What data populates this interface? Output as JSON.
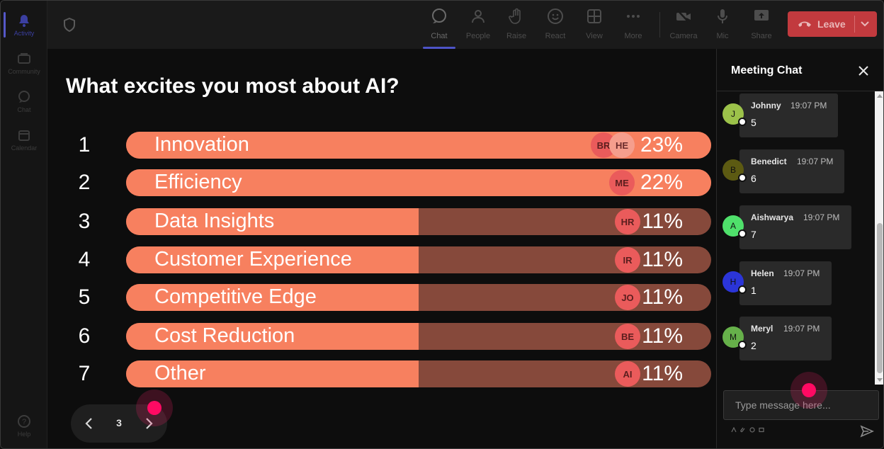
{
  "rail": {
    "items": [
      {
        "label": "Activity",
        "icon": "bell-icon"
      },
      {
        "label": "Community",
        "icon": "community-icon"
      },
      {
        "label": "Chat",
        "icon": "chat-icon"
      },
      {
        "label": "Calendar",
        "icon": "calendar-icon"
      }
    ],
    "help_label": "Help"
  },
  "topbar": {
    "buttons": [
      {
        "label": "Chat",
        "icon": "chat-icon"
      },
      {
        "label": "People",
        "icon": "people-icon"
      },
      {
        "label": "Raise",
        "icon": "raise-hand-icon"
      },
      {
        "label": "React",
        "icon": "smiley-icon"
      },
      {
        "label": "View",
        "icon": "grid-icon"
      },
      {
        "label": "More",
        "icon": "more-icon"
      },
      {
        "label": "Camera",
        "icon": "camera-off-icon"
      },
      {
        "label": "Mic",
        "icon": "mic-icon"
      },
      {
        "label": "Share",
        "icon": "share-icon"
      }
    ],
    "leave_label": "Leave",
    "leave_color": "#c23a3e"
  },
  "poll": {
    "question": "What excites you most about AI?",
    "options": [
      {
        "rank": "1",
        "label": "Innovation",
        "percent": "23%",
        "value": 23,
        "avatars": [
          "BR",
          "HE"
        ]
      },
      {
        "rank": "2",
        "label": "Efficiency",
        "percent": "22%",
        "value": 22,
        "avatars": [
          "ME"
        ]
      },
      {
        "rank": "3",
        "label": "Data Insights",
        "percent": "11%",
        "value": 11,
        "avatars": [
          "HR"
        ]
      },
      {
        "rank": "4",
        "label": "Customer Experience",
        "percent": "11%",
        "value": 11,
        "avatars": [
          "IR"
        ]
      },
      {
        "rank": "5",
        "label": "Competitive Edge",
        "percent": "11%",
        "value": 11,
        "avatars": [
          "JO"
        ]
      },
      {
        "rank": "6",
        "label": "Cost Reduction",
        "percent": "11%",
        "value": 11,
        "avatars": [
          "BE"
        ]
      },
      {
        "rank": "7",
        "label": "Other",
        "percent": "11%",
        "value": 11,
        "avatars": [
          "AI"
        ]
      }
    ],
    "bar_fill_color": "#f7805f",
    "bar_track_color": "#86493b"
  },
  "pager": {
    "page": "3"
  },
  "chat": {
    "title": "Meeting Chat",
    "messages": [
      {
        "initial": "J",
        "name": "Johnny",
        "time": "19:07 PM",
        "text": "5",
        "color": "#9cc24a"
      },
      {
        "initial": "B",
        "name": "Benedict",
        "time": "19:07 PM",
        "text": "6",
        "color": "#5c5a12"
      },
      {
        "initial": "A",
        "name": "Aishwarya",
        "time": "19:07 PM",
        "text": "7",
        "color": "#4fe06b"
      },
      {
        "initial": "H",
        "name": "Helen",
        "time": "19:07 PM",
        "text": "1",
        "color": "#2b35d8"
      },
      {
        "initial": "M",
        "name": "Meryl",
        "time": "19:07 PM",
        "text": "2",
        "color": "#66b04a"
      }
    ],
    "input_placeholder": "Type message here..."
  }
}
